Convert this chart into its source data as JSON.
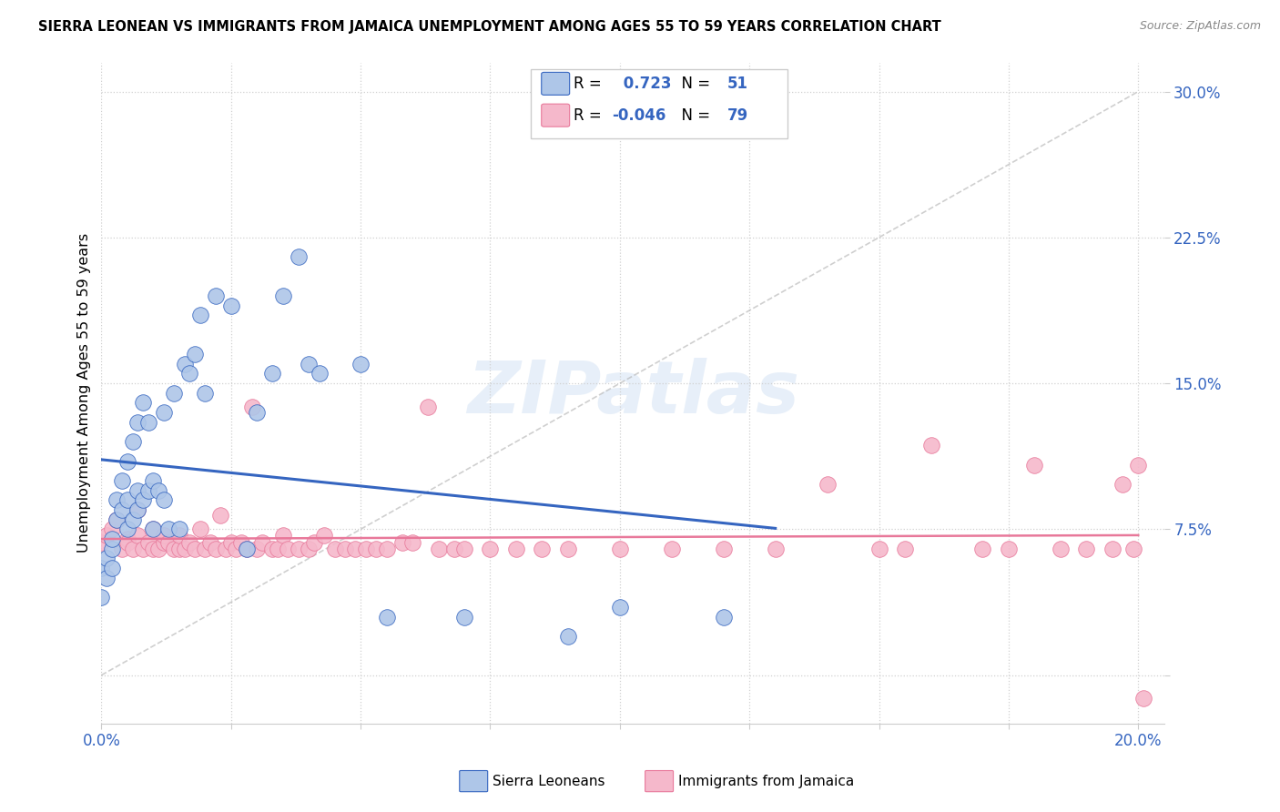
{
  "title": "SIERRA LEONEAN VS IMMIGRANTS FROM JAMAICA UNEMPLOYMENT AMONG AGES 55 TO 59 YEARS CORRELATION CHART",
  "source": "Source: ZipAtlas.com",
  "ylabel": "Unemployment Among Ages 55 to 59 years",
  "R_blue": 0.723,
  "N_blue": 51,
  "R_pink": -0.046,
  "N_pink": 79,
  "blue_color": "#aec6e8",
  "pink_color": "#f5b8cb",
  "blue_line_color": "#3565c0",
  "pink_line_color": "#e8789a",
  "xlim": [
    0.0,
    0.205
  ],
  "ylim": [
    -0.025,
    0.315
  ],
  "x_ticks": [
    0.0,
    0.025,
    0.05,
    0.075,
    0.1,
    0.125,
    0.15,
    0.175,
    0.2
  ],
  "y_ticks": [
    0.0,
    0.075,
    0.15,
    0.225,
    0.3
  ],
  "y_tick_labels": [
    "",
    "7.5%",
    "15.0%",
    "22.5%",
    "30.0%"
  ],
  "watermark_line1": "ZIP",
  "watermark_line2": "atlas",
  "blue_x": [
    0.0,
    0.0,
    0.001,
    0.001,
    0.002,
    0.002,
    0.002,
    0.003,
    0.003,
    0.004,
    0.004,
    0.005,
    0.005,
    0.005,
    0.006,
    0.006,
    0.007,
    0.007,
    0.007,
    0.008,
    0.008,
    0.009,
    0.009,
    0.01,
    0.01,
    0.011,
    0.012,
    0.012,
    0.013,
    0.014,
    0.015,
    0.016,
    0.017,
    0.018,
    0.019,
    0.02,
    0.022,
    0.025,
    0.028,
    0.03,
    0.033,
    0.035,
    0.038,
    0.04,
    0.042,
    0.05,
    0.055,
    0.07,
    0.09,
    0.1,
    0.12
  ],
  "blue_y": [
    0.055,
    0.04,
    0.06,
    0.05,
    0.065,
    0.055,
    0.07,
    0.08,
    0.09,
    0.085,
    0.1,
    0.075,
    0.09,
    0.11,
    0.08,
    0.12,
    0.085,
    0.095,
    0.13,
    0.09,
    0.14,
    0.095,
    0.13,
    0.075,
    0.1,
    0.095,
    0.09,
    0.135,
    0.075,
    0.145,
    0.075,
    0.16,
    0.155,
    0.165,
    0.185,
    0.145,
    0.195,
    0.19,
    0.065,
    0.135,
    0.155,
    0.195,
    0.215,
    0.16,
    0.155,
    0.16,
    0.03,
    0.03,
    0.02,
    0.035,
    0.03
  ],
  "pink_x": [
    0.0,
    0.001,
    0.002,
    0.003,
    0.004,
    0.005,
    0.005,
    0.006,
    0.007,
    0.007,
    0.008,
    0.009,
    0.01,
    0.01,
    0.011,
    0.012,
    0.012,
    0.013,
    0.014,
    0.015,
    0.015,
    0.016,
    0.017,
    0.018,
    0.019,
    0.02,
    0.021,
    0.022,
    0.023,
    0.024,
    0.025,
    0.026,
    0.027,
    0.028,
    0.029,
    0.03,
    0.031,
    0.033,
    0.034,
    0.035,
    0.036,
    0.038,
    0.04,
    0.041,
    0.043,
    0.045,
    0.047,
    0.049,
    0.051,
    0.053,
    0.055,
    0.058,
    0.06,
    0.063,
    0.065,
    0.068,
    0.07,
    0.075,
    0.08,
    0.085,
    0.09,
    0.1,
    0.11,
    0.12,
    0.13,
    0.14,
    0.15,
    0.155,
    0.16,
    0.17,
    0.175,
    0.18,
    0.185,
    0.19,
    0.195,
    0.197,
    0.199,
    0.2,
    0.201
  ],
  "pink_y": [
    0.068,
    0.072,
    0.075,
    0.08,
    0.065,
    0.07,
    0.068,
    0.065,
    0.072,
    0.085,
    0.065,
    0.068,
    0.065,
    0.075,
    0.065,
    0.068,
    0.072,
    0.068,
    0.065,
    0.065,
    0.072,
    0.065,
    0.068,
    0.065,
    0.075,
    0.065,
    0.068,
    0.065,
    0.082,
    0.065,
    0.068,
    0.065,
    0.068,
    0.065,
    0.138,
    0.065,
    0.068,
    0.065,
    0.065,
    0.072,
    0.065,
    0.065,
    0.065,
    0.068,
    0.072,
    0.065,
    0.065,
    0.065,
    0.065,
    0.065,
    0.065,
    0.068,
    0.068,
    0.138,
    0.065,
    0.065,
    0.065,
    0.065,
    0.065,
    0.065,
    0.065,
    0.065,
    0.065,
    0.065,
    0.065,
    0.098,
    0.065,
    0.065,
    0.118,
    0.065,
    0.065,
    0.108,
    0.065,
    0.065,
    0.065,
    0.098,
    0.065,
    0.108,
    -0.012
  ]
}
